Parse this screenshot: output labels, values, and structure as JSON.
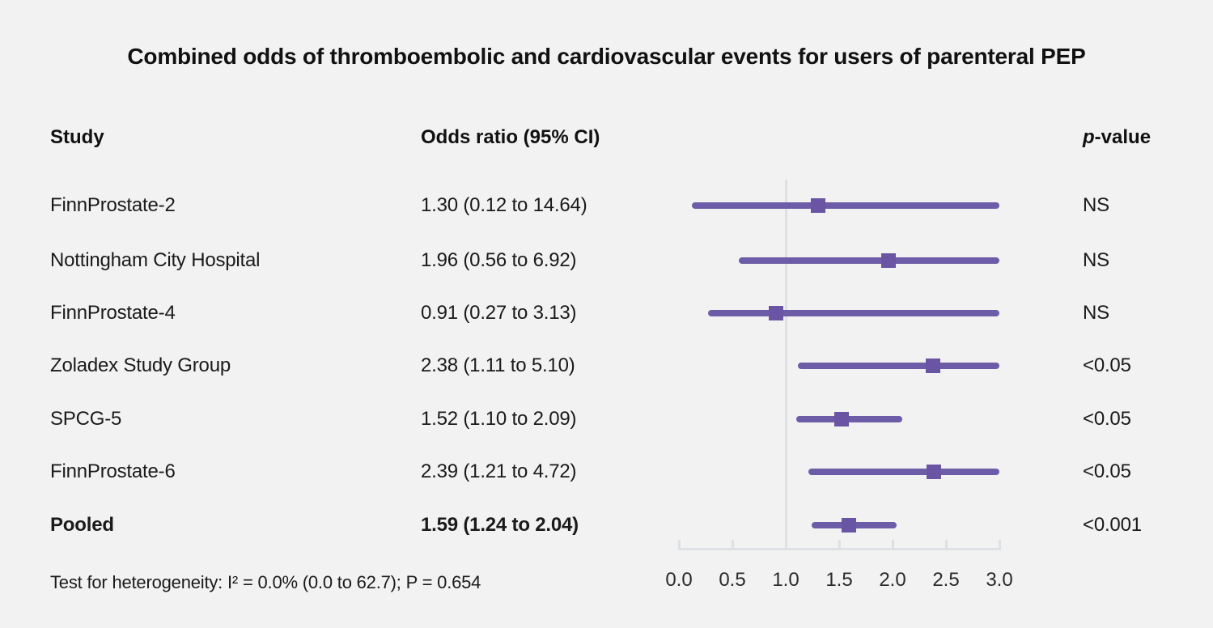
{
  "title": "Combined odds of thromboembolic and cardiovascular events for users of parenteral PEP",
  "columns": {
    "study": "Study",
    "odds_ratio": "Odds ratio (95% CI)",
    "p_value_italic": "p",
    "p_value_rest": "-value"
  },
  "footer": "Test for heterogeneity: I² = 0.0% (0.0 to 62.7); P = 0.654",
  "colors": {
    "background": "#f2f2f2",
    "ci_line": "#6d5ca7",
    "marker": "#6a55a4",
    "axis": "#dde1e6",
    "text": "#1a1a1a"
  },
  "chart_data": {
    "type": "forest",
    "x_range": [
      0.0,
      3.0
    ],
    "reference_line": 1.0,
    "x_ticks": [
      0.0,
      0.5,
      1.0,
      1.5,
      2.0,
      2.5,
      3.0
    ],
    "x_tick_labels": [
      "0.0",
      "0.5",
      "1.0",
      "1.5",
      "2.0",
      "2.5",
      "3.0"
    ],
    "rows": [
      {
        "study": "FinnProstate-2",
        "or_ci": "1.30 (0.12 to 14.64)",
        "or": 1.3,
        "ci_low": 0.12,
        "ci_high": 14.64,
        "p": "NS",
        "bold": false
      },
      {
        "study": "Nottingham City Hospital",
        "or_ci": "1.96 (0.56 to 6.92)",
        "or": 1.96,
        "ci_low": 0.56,
        "ci_high": 6.92,
        "p": "NS",
        "bold": false
      },
      {
        "study": "FinnProstate-4",
        "or_ci": "0.91 (0.27 to 3.13)",
        "or": 0.91,
        "ci_low": 0.27,
        "ci_high": 3.13,
        "p": "NS",
        "bold": false
      },
      {
        "study": "Zoladex Study Group",
        "or_ci": "2.38 (1.11 to 5.10)",
        "or": 2.38,
        "ci_low": 1.11,
        "ci_high": 5.1,
        "p": "<0.05",
        "bold": false
      },
      {
        "study": "SPCG-5",
        "or_ci": "1.52 (1.10 to 2.09)",
        "or": 1.52,
        "ci_low": 1.1,
        "ci_high": 2.09,
        "p": "<0.05",
        "bold": false
      },
      {
        "study": "FinnProstate-6",
        "or_ci": "2.39 (1.21 to 4.72)",
        "or": 2.39,
        "ci_low": 1.21,
        "ci_high": 4.72,
        "p": "<0.05",
        "bold": false
      },
      {
        "study": "Pooled",
        "or_ci": "1.59 (1.24 to 2.04)",
        "or": 1.59,
        "ci_low": 1.24,
        "ci_high": 2.04,
        "p": "<0.001",
        "bold": true
      }
    ]
  }
}
